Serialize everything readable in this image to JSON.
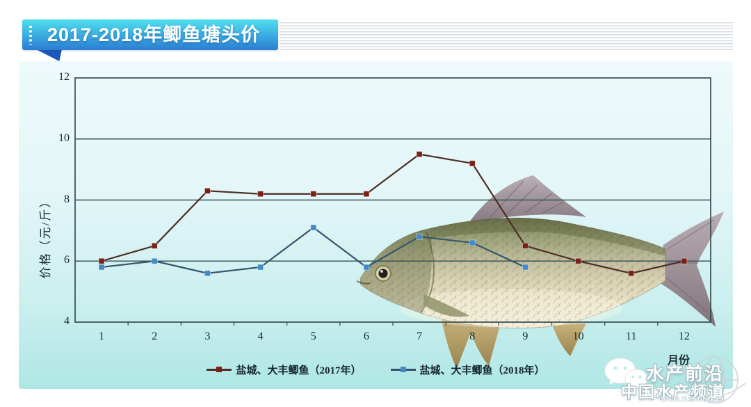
{
  "banner": {
    "title": "2017-2018年鲫鱼塘头价"
  },
  "chart_data": {
    "type": "line",
    "title": "2017-2018年鲫鱼塘头价",
    "xlabel": "月份",
    "ylabel": "价格（元/斤）",
    "categories": [
      "1",
      "2",
      "3",
      "4",
      "5",
      "6",
      "7",
      "8",
      "9",
      "10",
      "11",
      "12"
    ],
    "ylim": [
      4,
      12
    ],
    "yticks": [
      4,
      6,
      8,
      10,
      12
    ],
    "grid": "horizontal-only",
    "legend_position": "bottom-center",
    "series": [
      {
        "name": "盐城、大丰鲫鱼（2017年）",
        "marker_color": "#7b2018",
        "line_color": "#4c2d26",
        "values": [
          6.0,
          6.5,
          8.3,
          8.2,
          8.2,
          8.2,
          9.5,
          9.2,
          6.5,
          6.0,
          5.6,
          6.0
        ]
      },
      {
        "name": "盐城、大丰鲫鱼（2018年）",
        "marker_color": "#4189cb",
        "line_color": "#33566b",
        "values": [
          5.8,
          6.0,
          5.6,
          5.8,
          7.1,
          5.8,
          6.8,
          6.6,
          5.8,
          null,
          null,
          null
        ]
      }
    ]
  },
  "watermark": {
    "brand": "水产前沿",
    "channel": "中国水产频道",
    "url": "www.fishfirst.cn"
  },
  "icons": {
    "wechat": "wechat-logo-icon",
    "globe": "globe-icon",
    "fish": "crucian-carp-photo"
  },
  "colors": {
    "banner_top": "#50dff0",
    "banner_bottom": "#2c7dd2",
    "banner_tail": "#1d56b8",
    "panel_top": "#eefafb",
    "panel_bottom": "#aee7e4",
    "grid": "#3a5156",
    "axis_text": "#17262c"
  }
}
